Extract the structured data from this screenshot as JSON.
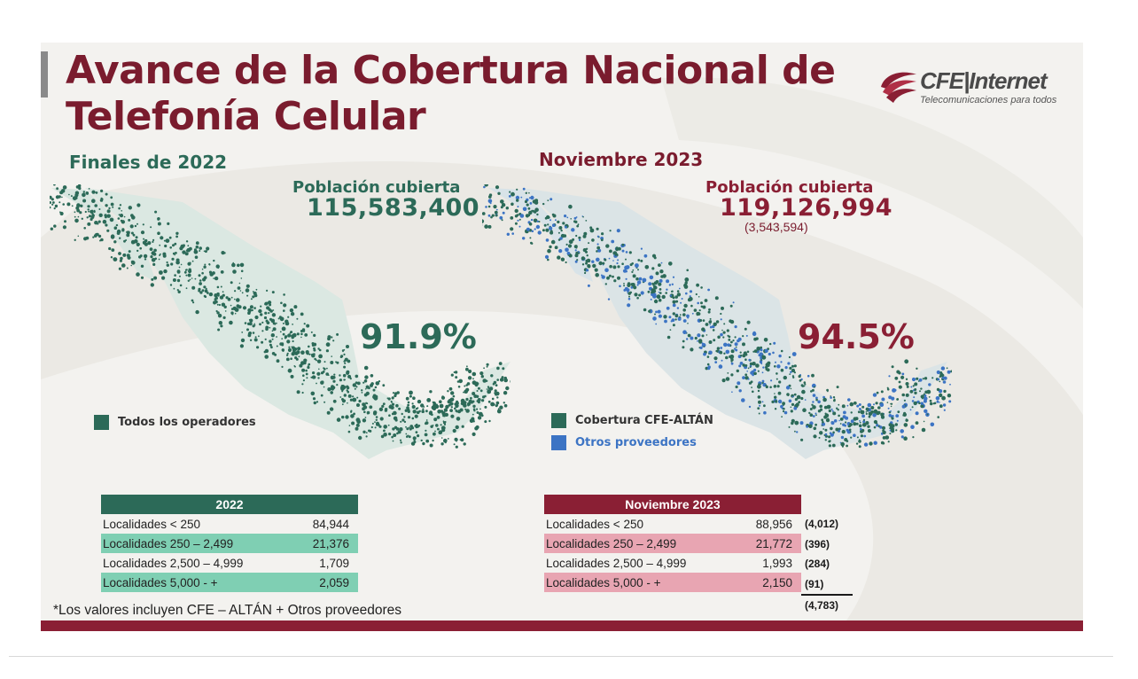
{
  "header": {
    "title_line1": "Avance de la Cobertura Nacional de",
    "title_line2": "Telefonía Celular"
  },
  "logo": {
    "name": "CFE|Internet",
    "tagline": "Telecomunicaciones para todos"
  },
  "left_panel": {
    "period": "Finales de 2022",
    "population_label": "Población cubierta",
    "population_value": "115,583,400",
    "coverage_pct": "91.9%",
    "legend": [
      {
        "label": "Todos los operadores",
        "color": "#2c6a58"
      }
    ]
  },
  "right_panel": {
    "period": "Noviembre 2023",
    "population_label": "Población cubierta",
    "population_value": "119,126,994",
    "population_delta": "(3,543,594)",
    "coverage_pct": "94.5%",
    "legend": [
      {
        "label": "Cobertura CFE-ALTÁN",
        "color": "#2c6a58"
      },
      {
        "label": "Otros proveedores",
        "color": "#3c74c4"
      }
    ]
  },
  "table_2022": {
    "header": "2022",
    "rows": [
      {
        "label": "Localidades < 250",
        "value": "84,944"
      },
      {
        "label": "Localidades 250 – 2,499",
        "value": "21,376"
      },
      {
        "label": "Localidades 2,500 – 4,999",
        "value": "1,709"
      },
      {
        "label": "Localidades 5,000 - +",
        "value": "2,059"
      }
    ]
  },
  "table_2023": {
    "header": "Noviembre 2023",
    "rows": [
      {
        "label": "Localidades < 250",
        "value": "88,956",
        "delta": "(4,012)"
      },
      {
        "label": "Localidades 250 – 2,499",
        "value": "21,772",
        "delta": "(396)"
      },
      {
        "label": "Localidades 2,500 – 4,999",
        "value": "1,993",
        "delta": "(284)"
      },
      {
        "label": "Localidades 5,000 - +",
        "value": "2,150",
        "delta": "(91)"
      }
    ],
    "delta_total": "(4,783)"
  },
  "footnote": "*Los valores incluyen CFE – ALTÁN + Otros proveedores",
  "colors": {
    "maroon": "#7a1c2e",
    "green": "#2c6a58",
    "blue": "#3c74c4",
    "light_green": "#7fcfb3",
    "light_pink": "#e8a5b2"
  }
}
